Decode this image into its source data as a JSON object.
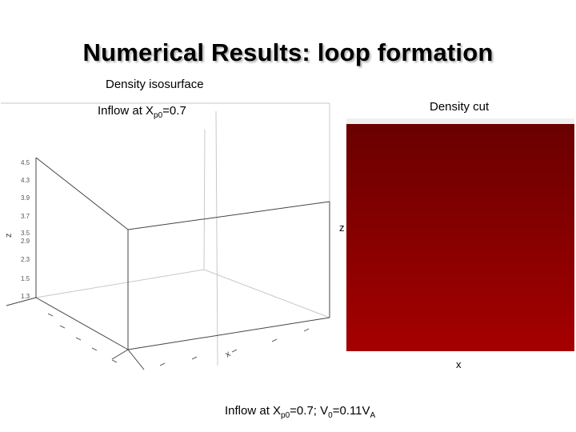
{
  "slide": {
    "title": "Numerical Results: loop formation",
    "density_isosurface_label": "Density isosurface",
    "inflow_left": {
      "prefix": "Inflow at X",
      "sub": "p0",
      "suffix": "=0.7"
    },
    "density_cut_label": "Density cut",
    "z_axis_label": "z",
    "x_axis_label": "x",
    "caption": {
      "p1": "Inflow at X",
      "s1": "p0",
      "p2": "=0.7; V",
      "s2": "0",
      "p3": "=0.11V",
      "s3": "A"
    }
  },
  "plot3d": {
    "z_axis_title": "z",
    "z_ticks": [
      "4.5",
      "4.3",
      "3.9",
      "3.7",
      "3.5",
      "2.9",
      "2.3",
      "1.5",
      "1.3"
    ],
    "x_axis_title": "x"
  },
  "colors": {
    "heatmap_top": "#6a0000",
    "heatmap_bottom": "#a50000"
  }
}
